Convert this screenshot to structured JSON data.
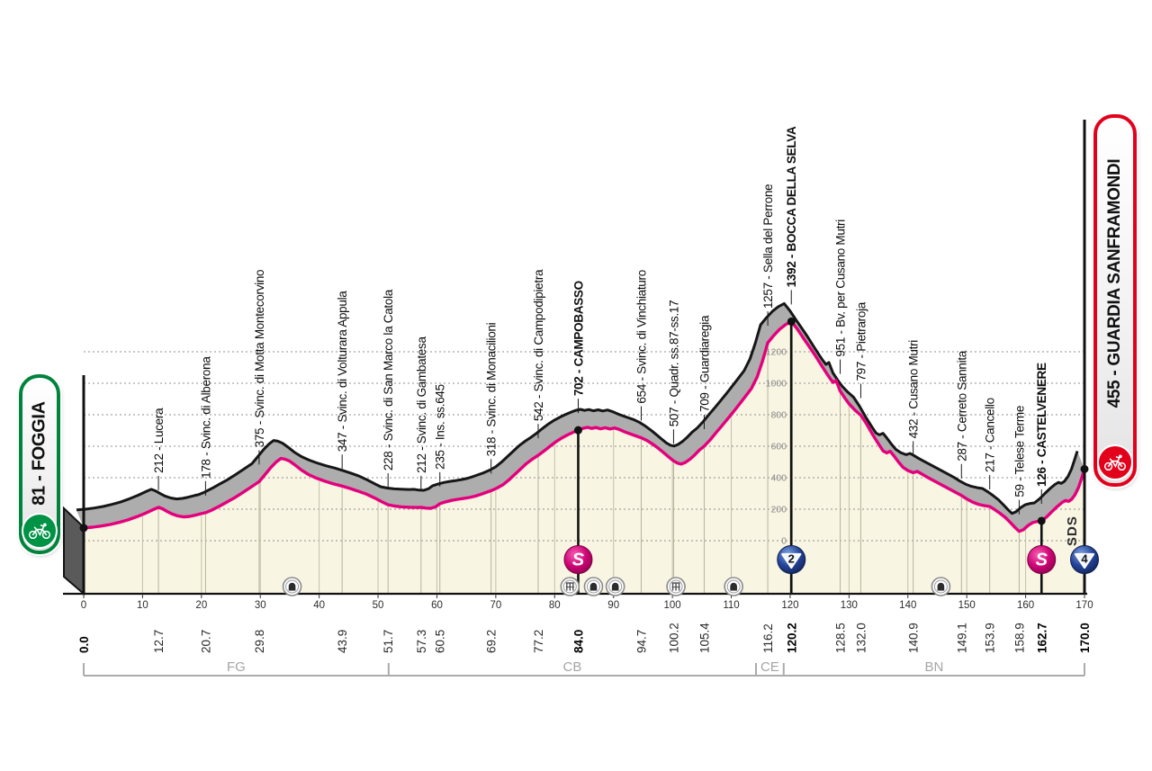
{
  "banners": {
    "start": {
      "text": "81 - FOGGIA",
      "accent_color": "#00843D"
    },
    "finish": {
      "text": "455 - GUARDIA SANFRAMONDI",
      "accent_color": "#E3001B"
    }
  },
  "watermark": "SDS",
  "colors": {
    "profile_line": "#E4007C",
    "profile_fill": "#F8F5E3",
    "shadow_fill": "#ADADAD",
    "shadow_line": "#161616",
    "grid_dotted": "#8f8f8f",
    "grid_vertical": "#c3c0a6",
    "axis": "#111111",
    "bracket": "#ababab",
    "sprint_icon": "#CE0677",
    "kom_icon": "#24439A",
    "tick_text": "#2d2d2d",
    "elevation_text": "#8a8a8a"
  },
  "chart_data": {
    "type": "area",
    "x_unit": "km",
    "y_unit": "m",
    "xlim": [
      0,
      170
    ],
    "ylim_m": [
      0,
      1400
    ],
    "x_ticks": [
      0,
      10,
      20,
      30,
      40,
      50,
      60,
      70,
      80,
      90,
      100,
      110,
      120,
      130,
      140,
      150,
      160,
      170
    ],
    "y_gridlines_m": [
      0,
      200,
      400,
      600,
      800,
      1000,
      1200
    ],
    "marker_glyphs": {
      "sprint": "S",
      "kom2": "2",
      "kom4": "4"
    },
    "start": {
      "km": 0.0,
      "elevation_m": 81,
      "name": "FOGGIA",
      "km_label": "0.0",
      "bold": true
    },
    "finish": {
      "km": 170.0,
      "elevation_m": 455,
      "name": "GUARDIA SANFRAMONDI",
      "km_label": "170.0",
      "bold": true,
      "marker": "kom4"
    },
    "waypoints": [
      {
        "km": 12.7,
        "elevation_m": 212,
        "label": "212 - Lucera",
        "km_label": "12.7",
        "bold": false,
        "marker": null
      },
      {
        "km": 20.7,
        "elevation_m": 178,
        "label": "178 - Svinc. di Alberona",
        "km_label": "20.7",
        "bold": false,
        "marker": null
      },
      {
        "km": 29.8,
        "elevation_m": 375,
        "label": "375 - Svinc. di Motta Montecorvino",
        "km_label": "29.8",
        "bold": false,
        "marker": null
      },
      {
        "km": 43.9,
        "elevation_m": 347,
        "label": "347 - Svinc. di Volturara Appula",
        "km_label": "43.9",
        "bold": false,
        "marker": null
      },
      {
        "km": 51.7,
        "elevation_m": 228,
        "label": "228 - Svinc. di San Marco la Catola",
        "km_label": "51.7",
        "bold": false,
        "marker": null
      },
      {
        "km": 57.3,
        "elevation_m": 212,
        "label": "212 - Svinc. di Gambatesa",
        "km_label": "57.3",
        "bold": false,
        "marker": null
      },
      {
        "km": 60.5,
        "elevation_m": 235,
        "label": "235 - Ins. ss.645",
        "km_label": "60.5",
        "bold": false,
        "marker": null
      },
      {
        "km": 69.2,
        "elevation_m": 318,
        "label": "318 - Svinc. di Monacilioni",
        "km_label": "69.2",
        "bold": false,
        "marker": null
      },
      {
        "km": 77.2,
        "elevation_m": 542,
        "label": "542 - Svinc. di Campodipietra",
        "km_label": "77.2",
        "bold": false,
        "marker": null
      },
      {
        "km": 84.0,
        "elevation_m": 702,
        "label": "702 - CAMPOBASSO",
        "km_label": "84.0",
        "bold": true,
        "marker": "sprint"
      },
      {
        "km": 94.7,
        "elevation_m": 654,
        "label": "654 - Svinc. di Vinchiaturo",
        "km_label": "94.7",
        "bold": false,
        "marker": null
      },
      {
        "km": 100.2,
        "elevation_m": 507,
        "label": "507 - Quadr. ss.87-ss.17",
        "km_label": "100.2",
        "bold": false,
        "marker": null
      },
      {
        "km": 105.4,
        "elevation_m": 709,
        "label": "709 - Guardiaregia",
        "km_label": "105.4",
        "bold": false,
        "marker": null
      },
      {
        "km": 116.2,
        "elevation_m": 1257,
        "label": "1257 - Sella del Perrone",
        "km_label": "116.2",
        "bold": false,
        "marker": null
      },
      {
        "km": 120.2,
        "elevation_m": 1392,
        "label": "1392 - BOCCA DELLA SELVA",
        "km_label": "120.2",
        "bold": true,
        "marker": "kom2"
      },
      {
        "km": 128.5,
        "elevation_m": 951,
        "label": "951 - Bv. per Cusano Mutri",
        "km_label": "128.5",
        "bold": false,
        "marker": null
      },
      {
        "km": 132.0,
        "elevation_m": 797,
        "label": "797 - Pietraroja",
        "km_label": "132.0",
        "bold": false,
        "marker": null
      },
      {
        "km": 140.9,
        "elevation_m": 432,
        "label": "432 - Cusano Mutri",
        "km_label": "140.9",
        "bold": false,
        "marker": null
      },
      {
        "km": 149.1,
        "elevation_m": 287,
        "label": "287 - Cerreto Sannita",
        "km_label": "149.1",
        "bold": false,
        "marker": null
      },
      {
        "km": 153.9,
        "elevation_m": 217,
        "label": "217 - Cancello",
        "km_label": "153.9",
        "bold": false,
        "marker": null
      },
      {
        "km": 158.9,
        "elevation_m": 59,
        "label": "59 - Telese Terme",
        "km_label": "158.9",
        "bold": false,
        "marker": null
      },
      {
        "km": 162.7,
        "elevation_m": 126,
        "label": "126 - CASTELVENERE",
        "km_label": "162.7",
        "bold": true,
        "marker": "sprint"
      }
    ],
    "infrastructure_markers": [
      {
        "km": 35.4,
        "type": "tunnel"
      },
      {
        "km": 82.6,
        "type": "viaduct"
      },
      {
        "km": 86.6,
        "type": "tunnel"
      },
      {
        "km": 90.3,
        "type": "tunnel"
      },
      {
        "km": 100.6,
        "type": "viaduct"
      },
      {
        "km": 110.4,
        "type": "tunnel"
      },
      {
        "km": 145.6,
        "type": "tunnel"
      }
    ],
    "provinces": [
      {
        "label": "FG",
        "from_km": 0,
        "to_km": 51.8
      },
      {
        "label": "CB",
        "from_km": 51.8,
        "to_km": 114.2
      },
      {
        "label": "CE",
        "from_km": 114.2,
        "to_km": 118.9
      },
      {
        "label": "BN",
        "from_km": 118.9,
        "to_km": 170
      }
    ],
    "profile_km_elevation": [
      [
        0,
        81
      ],
      [
        1.5,
        86
      ],
      [
        3,
        93
      ],
      [
        4.5,
        103
      ],
      [
        6,
        116
      ],
      [
        7.5,
        132
      ],
      [
        9,
        152
      ],
      [
        10.5,
        175
      ],
      [
        11.8,
        198
      ],
      [
        12.7,
        212
      ],
      [
        13.4,
        202
      ],
      [
        14.2,
        185
      ],
      [
        15,
        170
      ],
      [
        16,
        157
      ],
      [
        17,
        151
      ],
      [
        18,
        154
      ],
      [
        19,
        162
      ],
      [
        20,
        172
      ],
      [
        20.7,
        178
      ],
      [
        21.7,
        193
      ],
      [
        23,
        218
      ],
      [
        24.3,
        245
      ],
      [
        25.6,
        272
      ],
      [
        27,
        305
      ],
      [
        28.4,
        340
      ],
      [
        29.8,
        375
      ],
      [
        30.8,
        420
      ],
      [
        31.8,
        465
      ],
      [
        32.7,
        500
      ],
      [
        33.5,
        522
      ],
      [
        34.2,
        518
      ],
      [
        35,
        505
      ],
      [
        36,
        478
      ],
      [
        37,
        448
      ],
      [
        38.2,
        420
      ],
      [
        39.5,
        398
      ],
      [
        40.8,
        380
      ],
      [
        42.3,
        362
      ],
      [
        43.9,
        347
      ],
      [
        45.2,
        332
      ],
      [
        46.5,
        316
      ],
      [
        48,
        296
      ],
      [
        49.5,
        270
      ],
      [
        50.6,
        248
      ],
      [
        51.7,
        228
      ],
      [
        52.8,
        220
      ],
      [
        54,
        215
      ],
      [
        55.5,
        212
      ],
      [
        56.5,
        211
      ],
      [
        57.3,
        212
      ],
      [
        58.2,
        207
      ],
      [
        59,
        206
      ],
      [
        59.8,
        216
      ],
      [
        60.5,
        235
      ],
      [
        61.5,
        247
      ],
      [
        62.5,
        256
      ],
      [
        63.5,
        263
      ],
      [
        64.5,
        268
      ],
      [
        65.5,
        274
      ],
      [
        66.5,
        283
      ],
      [
        67.5,
        295
      ],
      [
        68.3,
        306
      ],
      [
        69.2,
        318
      ],
      [
        70.2,
        334
      ],
      [
        71.2,
        355
      ],
      [
        72.2,
        385
      ],
      [
        73.2,
        420
      ],
      [
        74.2,
        455
      ],
      [
        75.2,
        490
      ],
      [
        76.2,
        518
      ],
      [
        77.2,
        542
      ],
      [
        78.2,
        570
      ],
      [
        79.2,
        600
      ],
      [
        80.2,
        628
      ],
      [
        81.2,
        652
      ],
      [
        82.2,
        672
      ],
      [
        83.1,
        688
      ],
      [
        84,
        702
      ],
      [
        84.8,
        714
      ],
      [
        85.6,
        720
      ],
      [
        86.3,
        713
      ],
      [
        87,
        719
      ],
      [
        87.8,
        711
      ],
      [
        88.6,
        717
      ],
      [
        89.4,
        710
      ],
      [
        90.2,
        716
      ],
      [
        91,
        706
      ],
      [
        92,
        690
      ],
      [
        93.3,
        672
      ],
      [
        94.7,
        654
      ],
      [
        95.7,
        636
      ],
      [
        96.7,
        612
      ],
      [
        97.7,
        584
      ],
      [
        98.7,
        553
      ],
      [
        99.5,
        528
      ],
      [
        100.2,
        507
      ],
      [
        100.9,
        492
      ],
      [
        101.5,
        487
      ],
      [
        102.2,
        497
      ],
      [
        103,
        518
      ],
      [
        103.8,
        545
      ],
      [
        104.6,
        576
      ],
      [
        105.4,
        600
      ],
      [
        106.4,
        640
      ],
      [
        107.4,
        685
      ],
      [
        108.4,
        730
      ],
      [
        109.4,
        775
      ],
      [
        110.4,
        820
      ],
      [
        111.4,
        868
      ],
      [
        112.4,
        916
      ],
      [
        113.4,
        966
      ],
      [
        114.4,
        1040
      ],
      [
        115.3,
        1140
      ],
      [
        116.2,
        1257
      ],
      [
        117.2,
        1302
      ],
      [
        118.2,
        1342
      ],
      [
        119.2,
        1372
      ],
      [
        120.2,
        1392
      ],
      [
        121.2,
        1345
      ],
      [
        122.2,
        1290
      ],
      [
        123.2,
        1235
      ],
      [
        124.2,
        1180
      ],
      [
        125.2,
        1120
      ],
      [
        126.2,
        1062
      ],
      [
        126.8,
        1030
      ],
      [
        127.3,
        1005
      ],
      [
        127.8,
        1018
      ],
      [
        128.5,
        951
      ],
      [
        129.3,
        905
      ],
      [
        130.1,
        865
      ],
      [
        131,
        830
      ],
      [
        132,
        797
      ],
      [
        133,
        740
      ],
      [
        134,
        675
      ],
      [
        135,
        615
      ],
      [
        135.8,
        570
      ],
      [
        136.4,
        558
      ],
      [
        137,
        568
      ],
      [
        137.6,
        540
      ],
      [
        138.4,
        500
      ],
      [
        139.2,
        465
      ],
      [
        140,
        445
      ],
      [
        140.9,
        432
      ],
      [
        141.6,
        440
      ],
      [
        142.3,
        425
      ],
      [
        143.2,
        405
      ],
      [
        144.2,
        385
      ],
      [
        145.2,
        365
      ],
      [
        146.2,
        345
      ],
      [
        147.2,
        325
      ],
      [
        148.2,
        305
      ],
      [
        149.1,
        287
      ],
      [
        150,
        265
      ],
      [
        151,
        245
      ],
      [
        152,
        231
      ],
      [
        153,
        222
      ],
      [
        153.9,
        217
      ],
      [
        154.8,
        196
      ],
      [
        155.7,
        172
      ],
      [
        156.6,
        146
      ],
      [
        157.5,
        112
      ],
      [
        158.2,
        84
      ],
      [
        158.9,
        59
      ],
      [
        159.6,
        70
      ],
      [
        160.4,
        96
      ],
      [
        161.2,
        115
      ],
      [
        162,
        122
      ],
      [
        162.7,
        126
      ],
      [
        163.6,
        152
      ],
      [
        164.5,
        186
      ],
      [
        165.4,
        218
      ],
      [
        166.2,
        243
      ],
      [
        166.8,
        256
      ],
      [
        167.3,
        250
      ],
      [
        167.8,
        262
      ],
      [
        168.4,
        292
      ],
      [
        169,
        340
      ],
      [
        169.5,
        395
      ],
      [
        170,
        455
      ]
    ]
  }
}
